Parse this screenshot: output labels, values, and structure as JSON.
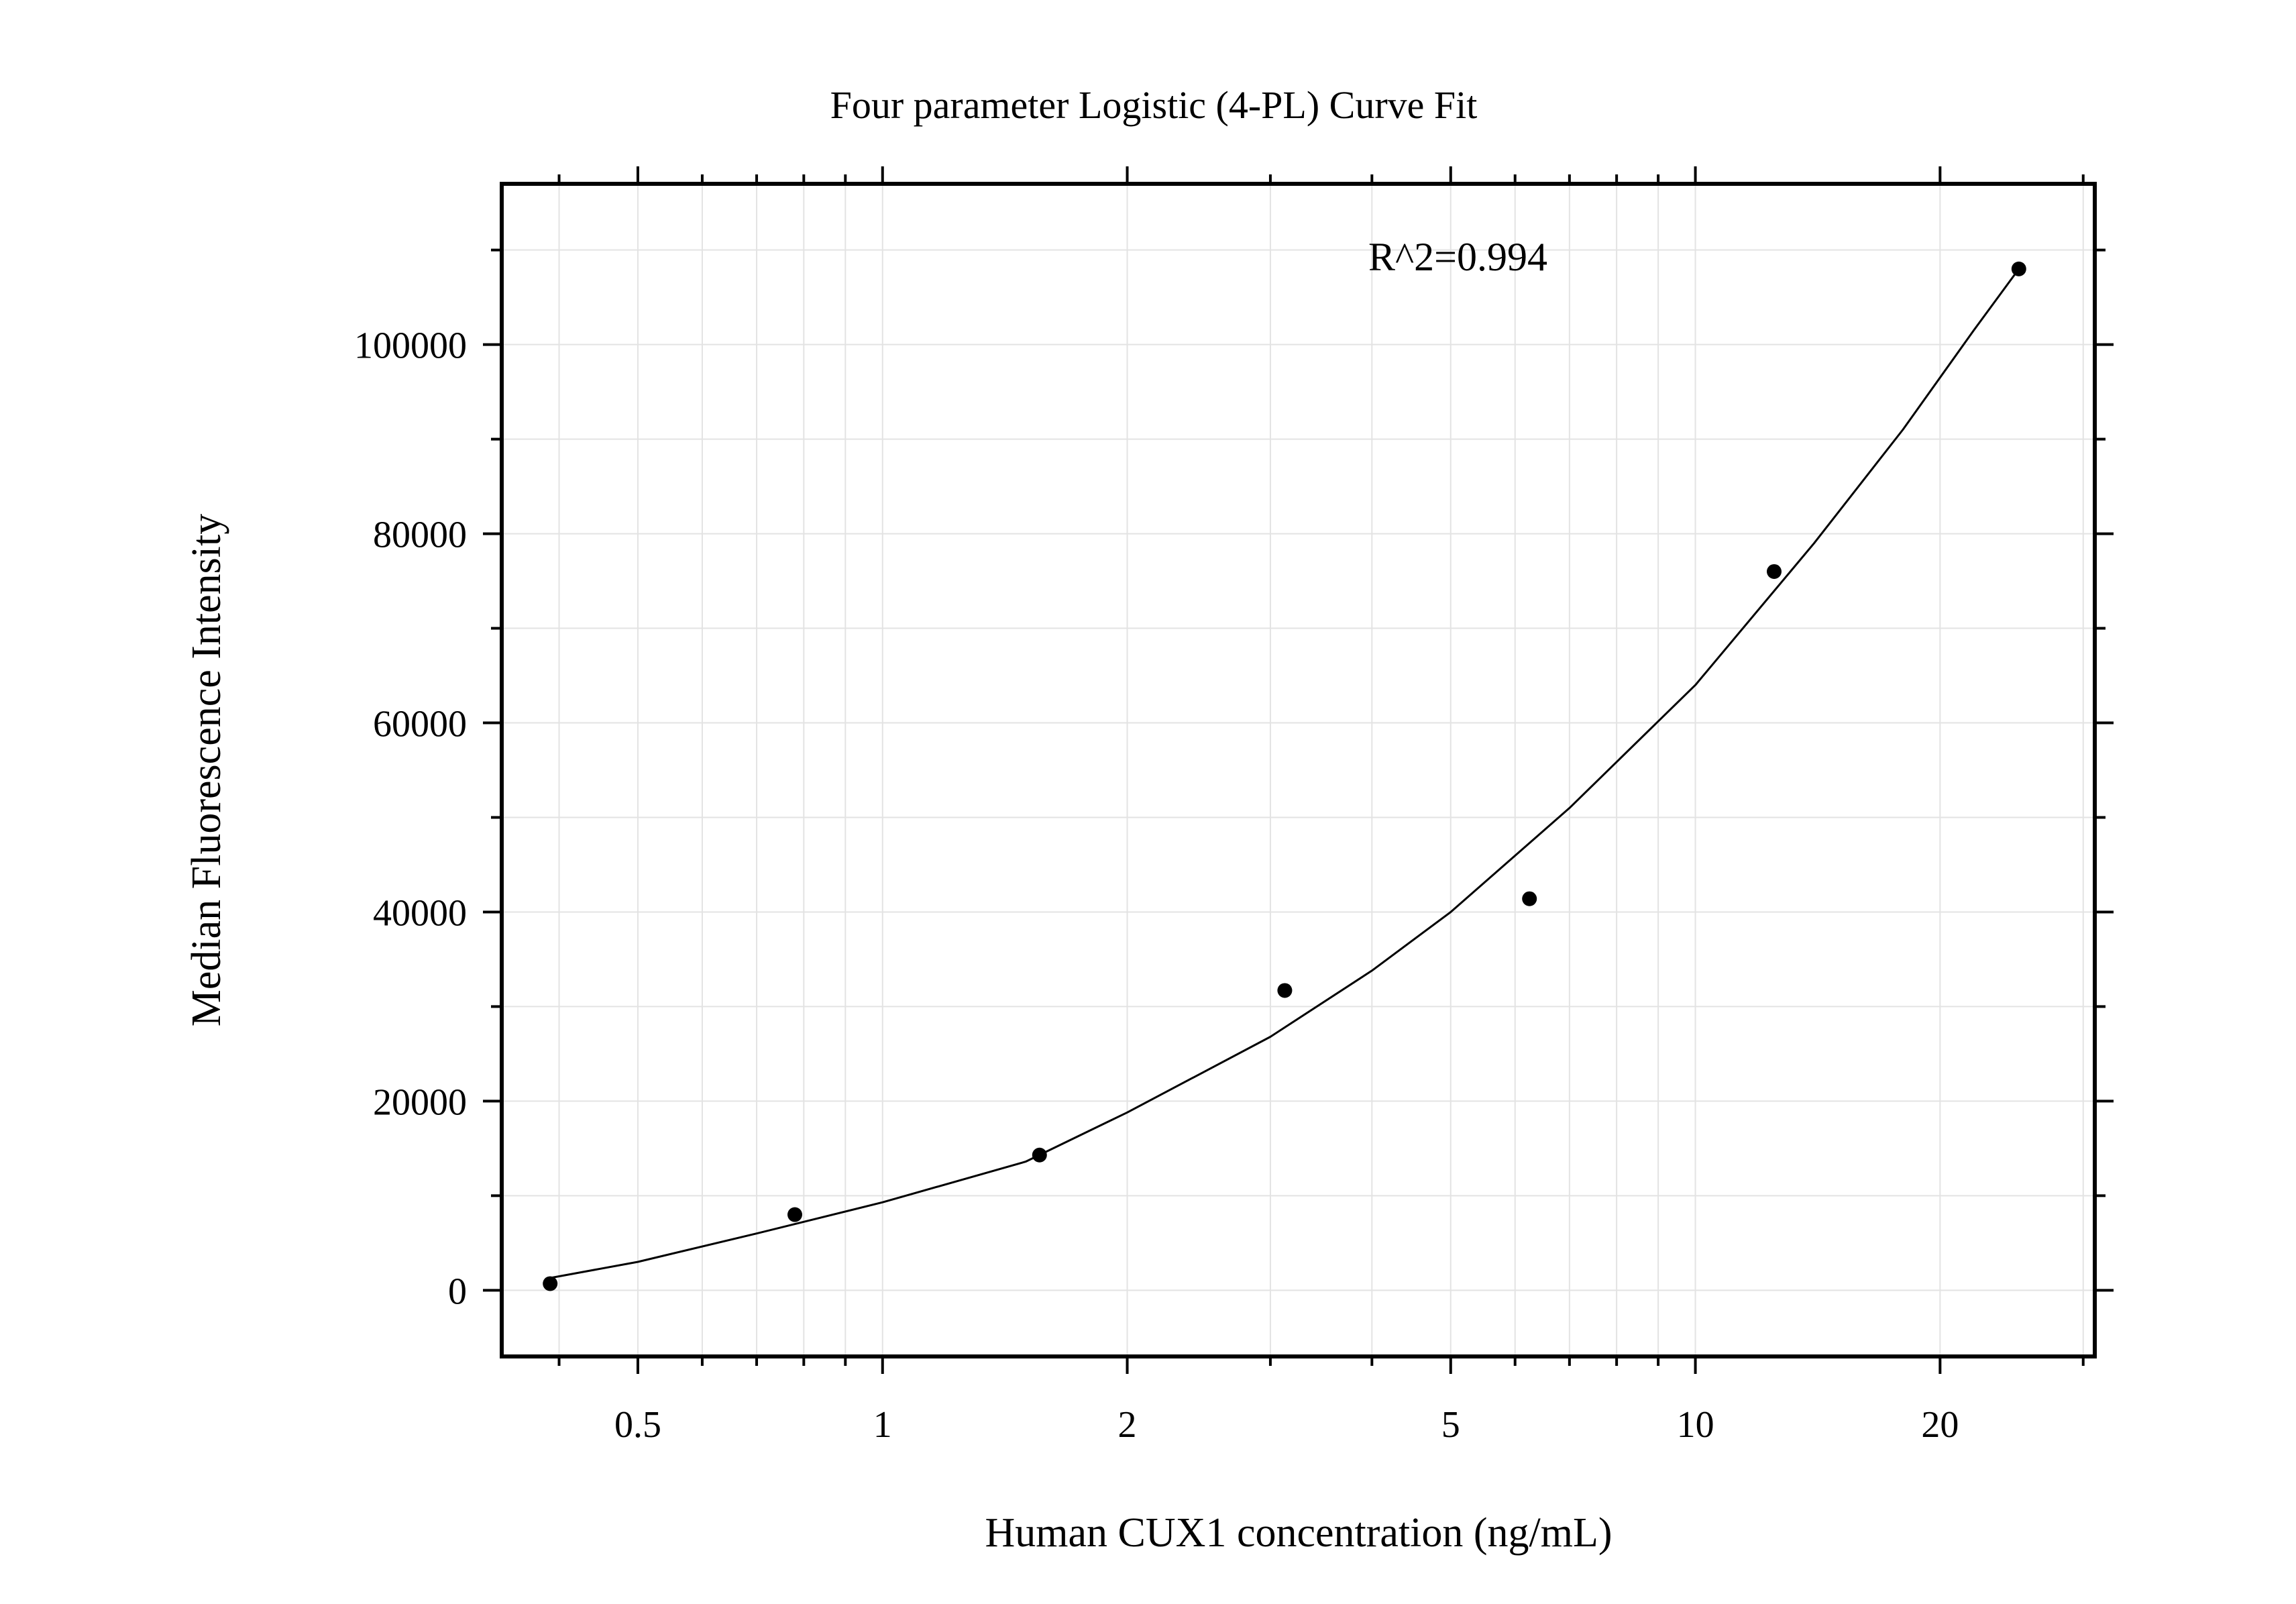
{
  "chart_data": {
    "type": "scatter",
    "title": "Four parameter Logistic (4-PL) Curve Fit",
    "xlabel": "Human CUX1 concentration (ng/mL)",
    "ylabel": "Median Fluorescence Intensity",
    "x_scale": "log",
    "xlim": [
      0.34,
      31
    ],
    "ylim": [
      -7000,
      117000
    ],
    "x_ticks": [
      {
        "value": 0.5,
        "label": "0.5"
      },
      {
        "value": 1,
        "label": "1"
      },
      {
        "value": 2,
        "label": "2"
      },
      {
        "value": 5,
        "label": "5"
      },
      {
        "value": 10,
        "label": "10"
      },
      {
        "value": 20,
        "label": "20"
      }
    ],
    "y_ticks": [
      {
        "value": 0,
        "label": "0"
      },
      {
        "value": 20000,
        "label": "20000"
      },
      {
        "value": 40000,
        "label": "40000"
      },
      {
        "value": 60000,
        "label": "60000"
      },
      {
        "value": 80000,
        "label": "80000"
      },
      {
        "value": 100000,
        "label": "100000"
      }
    ],
    "grid": true,
    "annotation": "R^2=0.994",
    "points": [
      {
        "x": 0.39,
        "y": 700
      },
      {
        "x": 0.78,
        "y": 8000
      },
      {
        "x": 1.56,
        "y": 14300
      },
      {
        "x": 3.125,
        "y": 31700
      },
      {
        "x": 6.25,
        "y": 41400
      },
      {
        "x": 12.5,
        "y": 76000
      },
      {
        "x": 25,
        "y": 108000
      }
    ],
    "fit_curve": {
      "model": "4-PL",
      "x": [
        0.39,
        0.5,
        0.7,
        1,
        1.5,
        2,
        3,
        4,
        5,
        7,
        10,
        14,
        18,
        22,
        25
      ],
      "y": [
        1300,
        3000,
        6000,
        9300,
        13600,
        18800,
        26800,
        33800,
        40000,
        51000,
        64000,
        79000,
        91000,
        101500,
        108000
      ]
    },
    "colors": {
      "points": "#000000",
      "curve": "#000000",
      "grid": "#e3e3e3"
    }
  }
}
